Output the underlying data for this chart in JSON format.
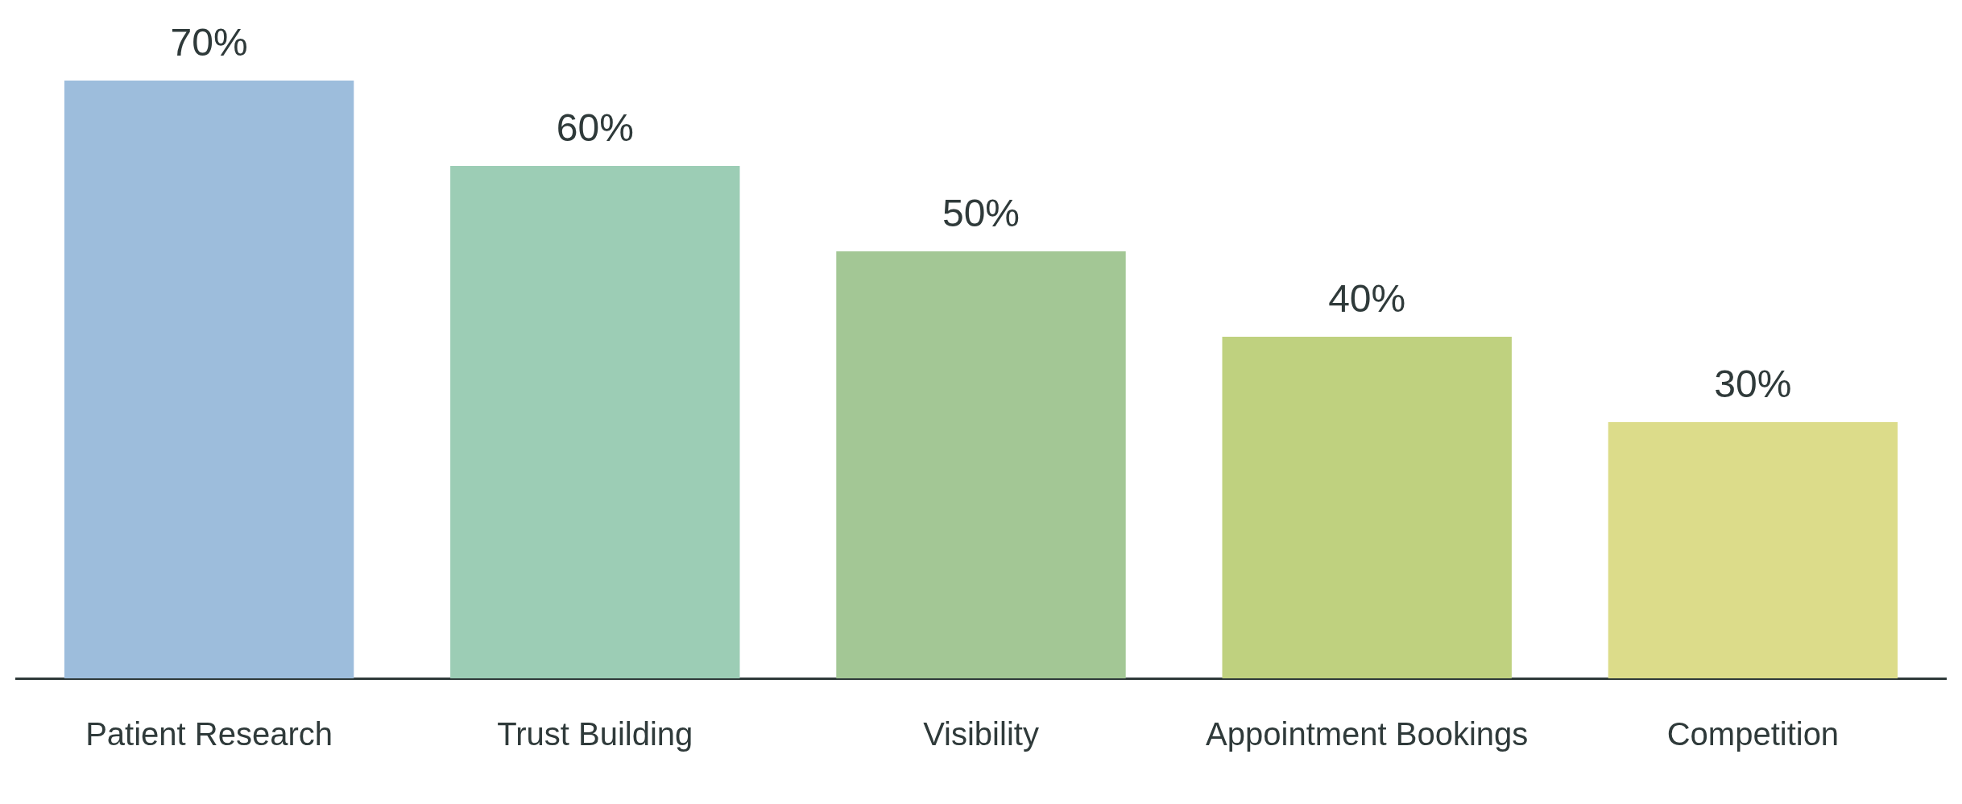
{
  "chart_data": {
    "type": "bar",
    "categories": [
      "Patient Research",
      "Trust Building",
      "Visibility",
      "Appointment Bookings",
      "Competition"
    ],
    "values": [
      70,
      60,
      50,
      40,
      30
    ],
    "colors": [
      "#9dbddc",
      "#9ccdb5",
      "#a3c795",
      "#bfd17f",
      "#dcdc8a"
    ],
    "value_labels": [
      "70%",
      "60%",
      "50%",
      "40%",
      "30%"
    ]
  }
}
